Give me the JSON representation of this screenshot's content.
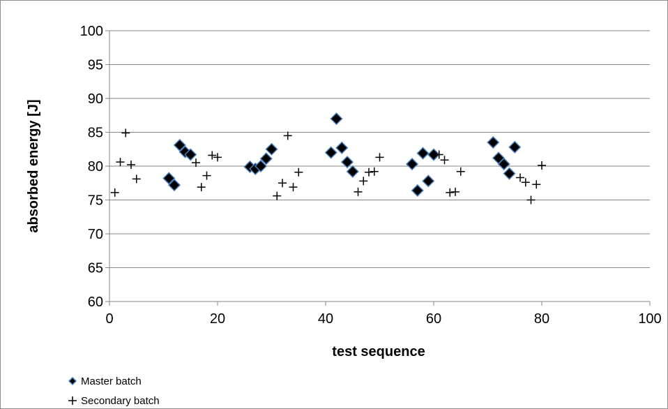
{
  "chart_data": {
    "type": "scatter",
    "title": "",
    "xlabel": "test sequence",
    "ylabel": "absorbed energy [J]",
    "xlim": [
      0,
      100
    ],
    "ylim": [
      60,
      100
    ],
    "x_ticks": [
      0,
      20,
      40,
      60,
      80,
      100
    ],
    "y_ticks": [
      60,
      65,
      70,
      75,
      80,
      85,
      90,
      95,
      100
    ],
    "grid": "horizontal",
    "legend_position": "bottom-left",
    "series": [
      {
        "name": "Master batch",
        "marker": "diamond",
        "color": "#000000",
        "edge_color": "#4a7ebb",
        "x": [
          11,
          12,
          13,
          14,
          15,
          26,
          27,
          28,
          29,
          30,
          41,
          42,
          43,
          44,
          45,
          56,
          57,
          58,
          59,
          60,
          71,
          72,
          73,
          74,
          75
        ],
        "y": [
          78.2,
          77.2,
          83.1,
          82.1,
          81.7,
          79.9,
          79.6,
          80.0,
          81.1,
          82.5,
          82.0,
          87.0,
          82.7,
          80.6,
          79.2,
          80.3,
          76.4,
          81.9,
          77.8,
          81.7,
          83.5,
          81.2,
          80.3,
          78.9,
          82.8
        ]
      },
      {
        "name": "Secondary batch",
        "marker": "plus",
        "color": "#000000",
        "x": [
          1,
          2,
          3,
          4,
          5,
          16,
          17,
          18,
          19,
          20,
          31,
          32,
          33,
          34,
          35,
          46,
          47,
          48,
          49,
          50,
          61,
          62,
          63,
          64,
          65,
          76,
          77,
          78,
          79,
          80
        ],
        "y": [
          76.1,
          80.6,
          84.9,
          80.2,
          78.1,
          80.5,
          76.9,
          78.6,
          81.6,
          81.3,
          75.6,
          77.5,
          84.5,
          76.9,
          79.1,
          76.2,
          77.8,
          79.1,
          79.2,
          81.3,
          81.7,
          80.9,
          76.1,
          76.2,
          79.2,
          78.3,
          77.6,
          75.0,
          77.3,
          80.1
        ]
      }
    ]
  }
}
